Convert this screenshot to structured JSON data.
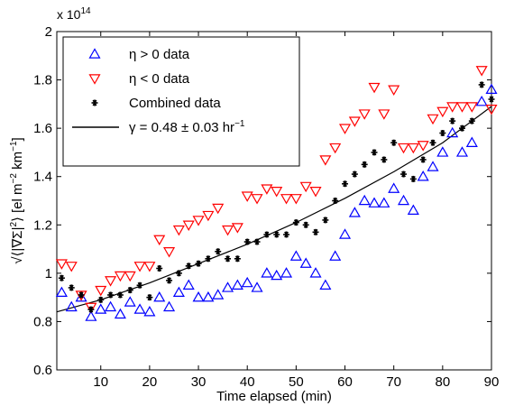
{
  "chart_data": {
    "type": "scatter",
    "xlabel": "Time elapsed (min)",
    "ylabel_parts": [
      "√⟨|∇Σ|",
      "2",
      "⟩ [el m",
      "−2",
      " km",
      "−1",
      "]"
    ],
    "y_exponent": {
      "base": "x 10",
      "power": "14"
    },
    "xlim": [
      1,
      90
    ],
    "ylim": [
      0.6,
      2.0
    ],
    "xticks": [
      10,
      20,
      30,
      40,
      50,
      60,
      70,
      80,
      90
    ],
    "xtick_labels": [
      "10",
      "20",
      "30",
      "40",
      "50",
      "60",
      "70",
      "80",
      "90"
    ],
    "yticks": [
      0.6,
      0.8,
      1.0,
      1.2,
      1.4,
      1.6,
      1.8,
      2.0
    ],
    "ytick_labels": [
      "0.6",
      "0.8",
      "1",
      "1.2",
      "1.4",
      "1.6",
      "1.8",
      "2"
    ],
    "grid": false,
    "legend_position": "top-left",
    "legend": [
      {
        "label": "η > 0 data",
        "marker": "triangle-up",
        "color": "#0000ff"
      },
      {
        "label": "η < 0 data",
        "marker": "triangle-down",
        "color": "#ff0000"
      },
      {
        "label": "Combined data",
        "marker": "star",
        "color": "#000000"
      },
      {
        "label_parts": [
          "γ = 0.48 ± 0.03 hr",
          "−1"
        ],
        "marker": "line",
        "color": "#000000"
      }
    ],
    "series": [
      {
        "name": "η > 0 data",
        "marker": "triangle-up",
        "color": "#0000ff",
        "x": [
          2,
          4,
          6,
          8,
          10,
          12,
          14,
          16,
          18,
          20,
          22,
          24,
          26,
          28,
          30,
          32,
          34,
          36,
          38,
          40,
          42,
          44,
          46,
          48,
          50,
          52,
          54,
          56,
          58,
          60,
          62,
          64,
          66,
          68,
          70,
          72,
          74,
          76,
          78,
          80,
          82,
          84,
          86,
          88,
          90
        ],
        "y": [
          0.92,
          0.86,
          0.9,
          0.82,
          0.85,
          0.86,
          0.83,
          0.88,
          0.85,
          0.84,
          0.9,
          0.86,
          0.92,
          0.95,
          0.9,
          0.9,
          0.91,
          0.94,
          0.95,
          0.96,
          0.94,
          1.0,
          0.99,
          1.0,
          1.07,
          1.04,
          1.0,
          0.95,
          1.07,
          1.16,
          1.25,
          1.3,
          1.29,
          1.29,
          1.35,
          1.3,
          1.26,
          1.4,
          1.44,
          1.5,
          1.58,
          1.5,
          1.54,
          1.71,
          1.76
        ]
      },
      {
        "name": "η < 0 data",
        "marker": "triangle-down",
        "color": "#ff0000",
        "x": [
          2,
          4,
          6,
          8,
          10,
          12,
          14,
          16,
          18,
          20,
          22,
          24,
          26,
          28,
          30,
          32,
          34,
          36,
          38,
          40,
          42,
          44,
          46,
          48,
          50,
          52,
          54,
          56,
          58,
          60,
          62,
          64,
          66,
          68,
          70,
          72,
          74,
          76,
          78,
          80,
          82,
          84,
          86,
          88,
          90
        ],
        "y": [
          1.04,
          1.03,
          0.91,
          0.86,
          0.93,
          0.97,
          0.99,
          0.99,
          1.03,
          1.03,
          1.14,
          1.09,
          1.18,
          1.2,
          1.22,
          1.24,
          1.27,
          1.18,
          1.19,
          1.32,
          1.31,
          1.35,
          1.34,
          1.31,
          1.31,
          1.36,
          1.34,
          1.47,
          1.52,
          1.6,
          1.63,
          1.66,
          1.77,
          1.66,
          1.76,
          1.52,
          1.52,
          1.53,
          1.64,
          1.67,
          1.69,
          1.69,
          1.69,
          1.84,
          1.68
        ]
      },
      {
        "name": "Combined data",
        "marker": "star",
        "color": "#000000",
        "x": [
          2,
          4,
          6,
          8,
          10,
          12,
          14,
          16,
          18,
          20,
          22,
          24,
          26,
          28,
          30,
          32,
          34,
          36,
          38,
          40,
          42,
          44,
          46,
          48,
          50,
          52,
          54,
          56,
          58,
          60,
          62,
          64,
          66,
          68,
          70,
          72,
          74,
          76,
          78,
          80,
          82,
          84,
          86,
          88,
          90
        ],
        "y": [
          0.98,
          0.94,
          0.91,
          0.85,
          0.89,
          0.91,
          0.91,
          0.93,
          0.95,
          0.9,
          1.02,
          0.97,
          1.0,
          1.03,
          1.04,
          1.06,
          1.09,
          1.06,
          1.06,
          1.13,
          1.13,
          1.16,
          1.16,
          1.16,
          1.21,
          1.2,
          1.17,
          1.22,
          1.3,
          1.37,
          1.41,
          1.45,
          1.5,
          1.47,
          1.54,
          1.41,
          1.39,
          1.47,
          1.54,
          1.58,
          1.63,
          1.6,
          1.63,
          1.78,
          1.72
        ]
      },
      {
        "name": "γ = 0.48 ± 0.03 hr⁻¹",
        "type": "line",
        "color": "#000000",
        "x": [
          1,
          10,
          20,
          30,
          40,
          50,
          60,
          70,
          80,
          90
        ],
        "y": [
          0.84,
          0.89,
          0.96,
          1.04,
          1.12,
          1.21,
          1.31,
          1.42,
          1.54,
          1.69
        ]
      }
    ]
  }
}
